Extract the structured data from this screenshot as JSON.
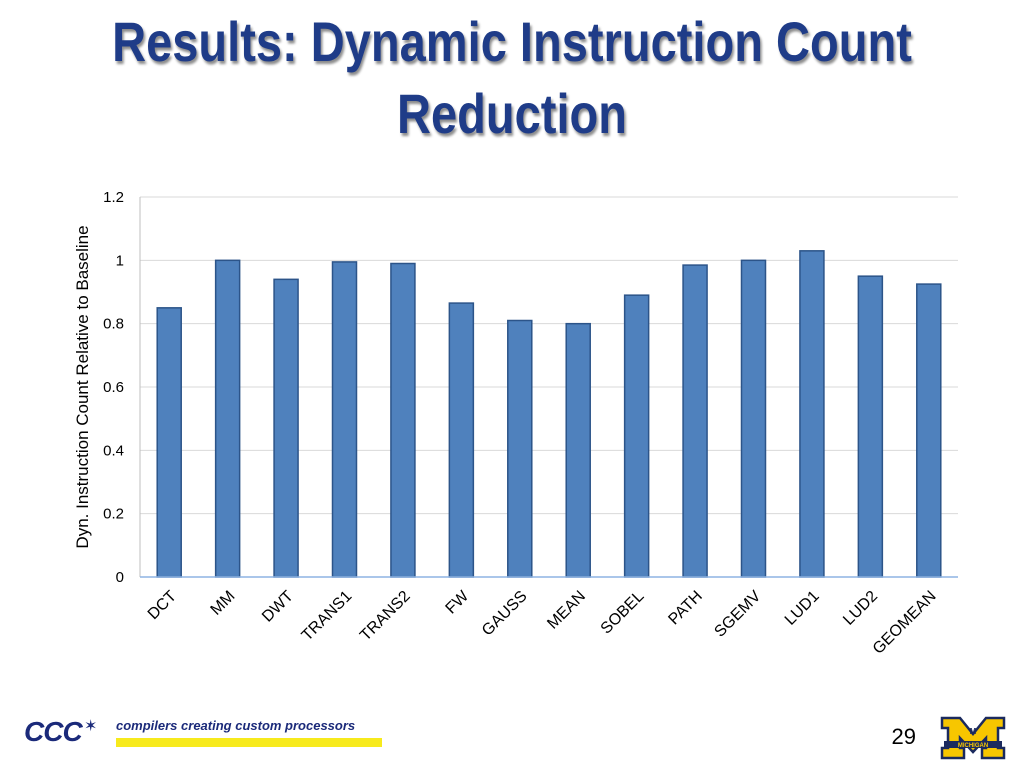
{
  "slide": {
    "title": "Results: Dynamic Instruction Count Reduction",
    "page_number": "29"
  },
  "footer": {
    "logo_text": "CCC",
    "tagline": "compilers creating custom processors",
    "university_logo_letter": "M",
    "university_logo_text": "MICHIGAN"
  },
  "colors": {
    "title": "#1f3c88",
    "bar_fill": "#4f81bd",
    "bar_stroke": "#2c5489",
    "gridline": "#d9d9d9"
  },
  "chart_data": {
    "type": "bar",
    "categories": [
      "DCT",
      "MM",
      "DWT",
      "TRANS1",
      "TRANS2",
      "FW",
      "GAUSS",
      "MEAN",
      "SOBEL",
      "PATH",
      "SGEMV",
      "LUD1",
      "LUD2",
      "GEOMEAN"
    ],
    "values": [
      0.85,
      1.0,
      0.94,
      0.995,
      0.99,
      0.865,
      0.81,
      0.8,
      0.89,
      0.985,
      1.0,
      1.03,
      0.95,
      0.925
    ],
    "title": "",
    "xlabel": "",
    "ylabel": "Dyn. Instruction Count Relative to Baseline",
    "ylim": [
      0,
      1.2
    ],
    "yticks": [
      "0",
      "0.2",
      "0.4",
      "0.6",
      "0.8",
      "1",
      "1.2"
    ],
    "grid": true,
    "legend": "none"
  }
}
